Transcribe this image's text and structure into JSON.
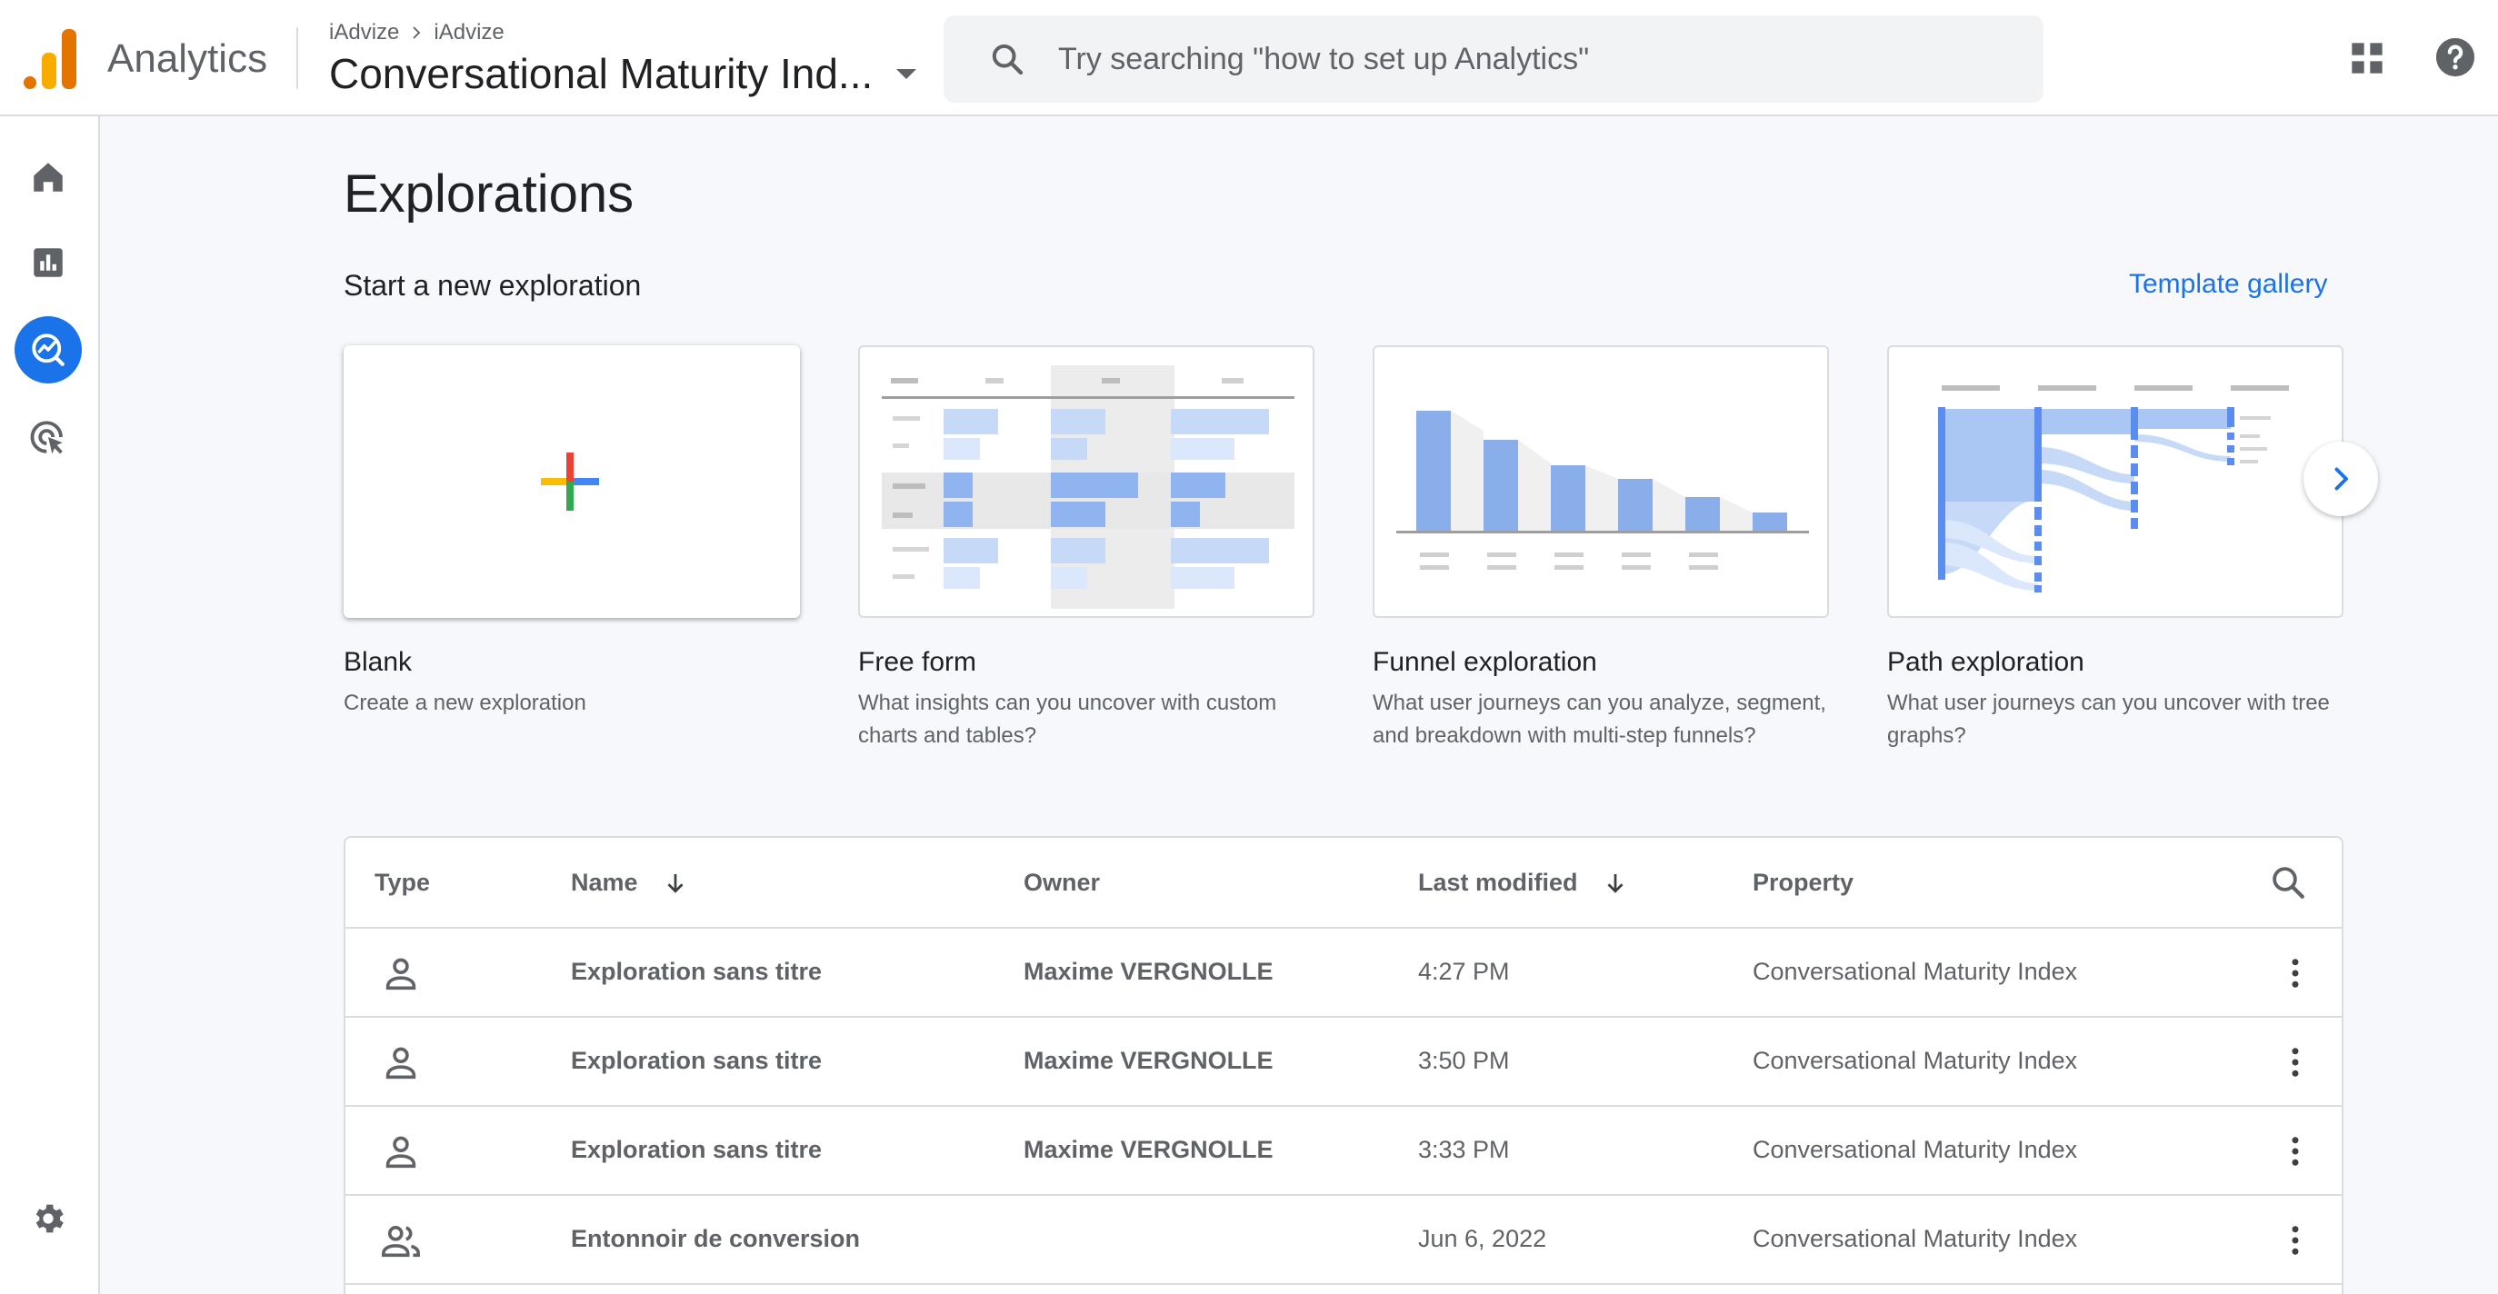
{
  "header": {
    "app_name": "Analytics",
    "breadcrumb": [
      "iAdvize",
      "iAdvize"
    ],
    "property_name": "Conversational Maturity Ind...",
    "search_placeholder": "Try searching \"how to set up Analytics\"",
    "logo_colors": [
      "#f9ab00",
      "#e37400"
    ]
  },
  "rail": {
    "items": [
      "home-icon",
      "reports-icon",
      "explore-icon",
      "advertising-icon",
      "settings-icon"
    ],
    "active": "explore-icon",
    "accent": "#1a73e8"
  },
  "main": {
    "title": "Explorations",
    "new_section_title": "Start a new exploration",
    "template_gallery": "Template gallery",
    "templates": [
      {
        "title": "Blank",
        "description": "Create a new exploration"
      },
      {
        "title": "Free form",
        "description": "What insights can you uncover with custom charts and tables?"
      },
      {
        "title": "Funnel exploration",
        "description": "What user journeys can you analyze, segment, and breakdown with multi-step funnels?"
      },
      {
        "title": "Path exploration",
        "description": "What user journeys can you uncover with tree graphs?"
      }
    ]
  },
  "table": {
    "columns": [
      "Type",
      "Name",
      "Owner",
      "Last modified",
      "Property"
    ],
    "rows": [
      {
        "type_icon": "person-icon",
        "name": "Exploration sans titre",
        "owner": "Maxime VERGNOLLE",
        "modified": "4:27 PM",
        "property": "Conversational Maturity Index"
      },
      {
        "type_icon": "person-icon",
        "name": "Exploration sans titre",
        "owner": "Maxime VERGNOLLE",
        "modified": "3:50 PM",
        "property": "Conversational Maturity Index"
      },
      {
        "type_icon": "person-icon",
        "name": "Exploration sans titre",
        "owner": "Maxime VERGNOLLE",
        "modified": "3:33 PM",
        "property": "Conversational Maturity Index"
      },
      {
        "type_icon": "people-icon",
        "name": "Entonnoir de conversion",
        "owner": "",
        "modified": "Jun 6, 2022",
        "property": "Conversational Maturity Index"
      }
    ]
  }
}
